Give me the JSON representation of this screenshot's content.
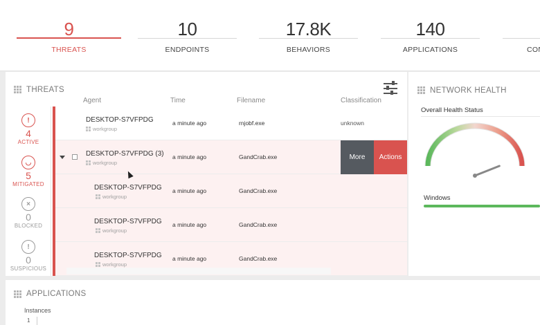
{
  "stats": [
    {
      "value": "9",
      "label": "THREATS",
      "active": true
    },
    {
      "value": "10",
      "label": "ENDPOINTS",
      "active": false
    },
    {
      "value": "17.8K",
      "label": "BEHAVIORS",
      "active": false
    },
    {
      "value": "140",
      "label": "APPLICATIONS",
      "active": false
    },
    {
      "value": "",
      "label": "CON",
      "active": false
    }
  ],
  "threats": {
    "title": "THREATS",
    "columns": {
      "agent": "Agent",
      "time": "Time",
      "filename": "Filename",
      "classification": "Classification"
    },
    "counts": [
      {
        "icon": "alert-shield-icon",
        "value": "4",
        "label": "ACTIVE"
      },
      {
        "icon": "shield-icon",
        "value": "5",
        "label": "MITIGATED"
      },
      {
        "icon": "blocked-shield-icon",
        "value": "0",
        "label": "BLOCKED"
      },
      {
        "icon": "suspicious-shield-icon",
        "value": "0",
        "label": "SUSPICIOUS"
      }
    ],
    "rows": [
      {
        "agent": "DESKTOP-S7VFPDG",
        "group": "workgroup",
        "time": "a minute ago",
        "file": "rnjobf.exe",
        "classification": "unknown"
      },
      {
        "agent": "DESKTOP-S7VFPDG (3)",
        "group": "workgroup",
        "time": "a minute ago",
        "file": "GandCrab.exe",
        "classification": ""
      },
      {
        "agent": "DESKTOP-S7VFPDG",
        "group": "workgroup",
        "time": "a minute ago",
        "file": "GandCrab.exe",
        "classification": ""
      },
      {
        "agent": "DESKTOP-S7VFPDG",
        "group": "workgroup",
        "time": "a minute ago",
        "file": "GandCrab.exe",
        "classification": ""
      },
      {
        "agent": "DESKTOP-S7VFPDG",
        "group": "workgroup",
        "time": "a minute ago",
        "file": "GandCrab.exe",
        "classification": ""
      }
    ],
    "more_label": "More",
    "actions_label": "Actions"
  },
  "network": {
    "title": "NETWORK HEALTH",
    "subtitle": "Overall Health Status",
    "os_label": "Windows",
    "health_level": 0.12
  },
  "applications": {
    "title": "APPLICATIONS",
    "subtitle": "Instances",
    "first_value": "1"
  },
  "colors": {
    "accent_red": "#d9534f",
    "healthy_green": "#5cb85c",
    "more_button": "#555a60"
  }
}
